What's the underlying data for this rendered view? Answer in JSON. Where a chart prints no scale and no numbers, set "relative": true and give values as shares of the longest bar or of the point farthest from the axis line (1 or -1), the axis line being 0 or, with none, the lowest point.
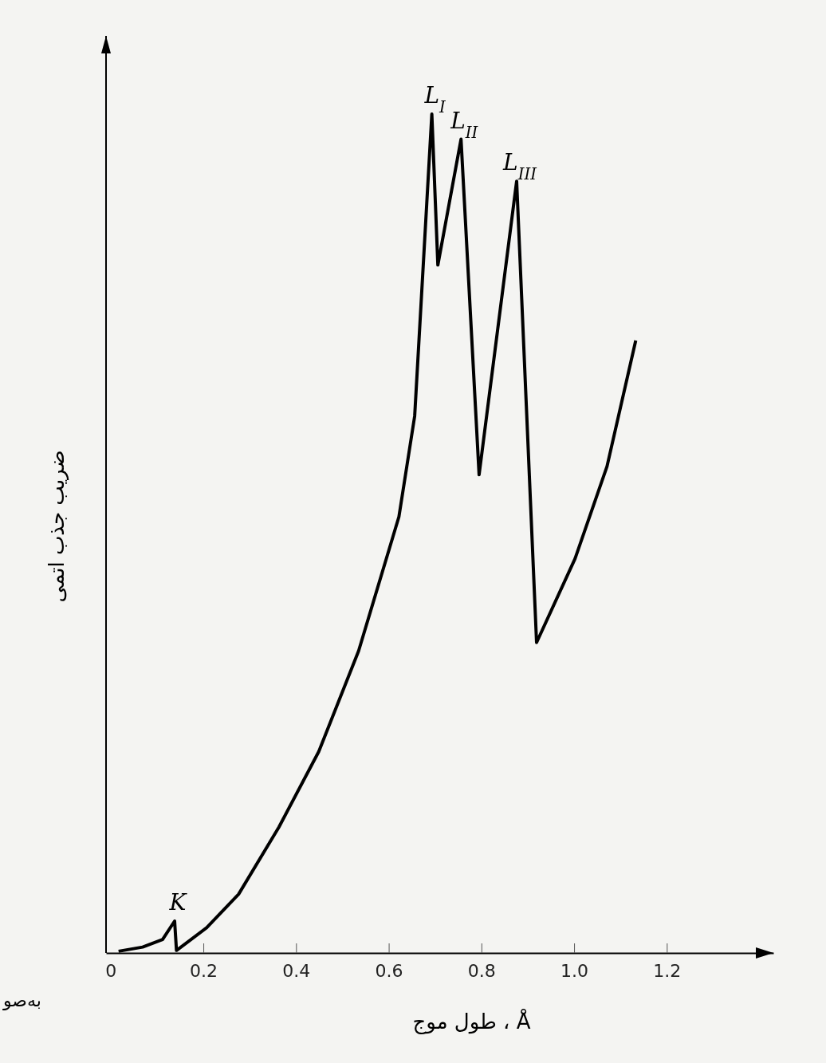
{
  "chart_data": {
    "type": "line",
    "relative": true,
    "xlabel": "طول موج ، Å",
    "ylabel": "ضریب جذب اتمی",
    "xlim": [
      -0.01,
      1.43
    ],
    "xticks": [
      0,
      0.2,
      0.4,
      0.6,
      0.8,
      {
        "value": 1.0,
        "label": "1.0"
      },
      1.2
    ],
    "marker": "none",
    "line_style": "solid",
    "grid": false,
    "series": [
      {
        "color": "#000000",
        "x": [
          0.017,
          0.069,
          0.112,
          0.138,
          0.142,
          0.207,
          0.276,
          0.363,
          0.449,
          0.535,
          0.622,
          0.656,
          0.693,
          0.706,
          0.756,
          0.795,
          0.876,
          0.919,
          1.002,
          1.071,
          1.133
        ],
        "values": [
          0.002,
          0.007,
          0.016,
          0.038,
          0.003,
          0.03,
          0.07,
          0.15,
          0.24,
          0.36,
          0.52,
          0.64,
          1.0,
          0.82,
          0.97,
          0.57,
          0.92,
          0.37,
          0.47,
          0.58,
          0.73
        ]
      }
    ],
    "annotations": [
      {
        "text": "K",
        "x": 0.138,
        "y": 0.038
      },
      {
        "text": "L$_{I}$",
        "x": 0.693,
        "y": 1.0
      },
      {
        "text": "L$_{II}$",
        "x": 0.756,
        "y": 0.97
      },
      {
        "text": "L$_{III}$",
        "x": 0.876,
        "y": 0.92
      },
      "به‌صو"
    ]
  }
}
